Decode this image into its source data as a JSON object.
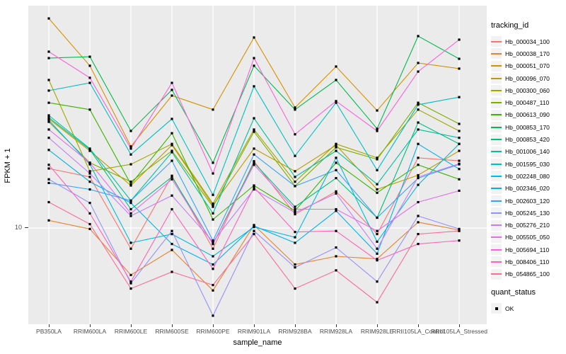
{
  "axes": {
    "ylabel": "FPKM + 1",
    "xlabel": "sample_name",
    "y_tick_label": "10"
  },
  "legend": {
    "tracking_title": "tracking_id",
    "quant_title": "quant_status",
    "quant_ok_label": "OK"
  },
  "colors": {
    "panel_bg": "#EBEBEB",
    "grid": "#FFFFFF",
    "point": "#000000",
    "tick_text": "#4D4D4D",
    "legend_key_bg": "#F2F2F2"
  },
  "chart_data": {
    "type": "line",
    "title": "",
    "xlabel": "sample_name",
    "ylabel": "FPKM + 1",
    "y_scale": "log10",
    "ylim": [
      3.5,
      140
    ],
    "y_breaks": [
      10
    ],
    "grid": "major-only",
    "legend_position": "right",
    "point_shape": "filled-square-black",
    "categories": [
      "PB350LA",
      "RRIM600LA",
      "RRIM600LE",
      "RRIM600SE",
      "RRIM600PE",
      "RRIM901LA",
      "RRIM928BA",
      "RRIM928LA",
      "RRIM928LE",
      "RRII105LA_Control",
      "RRII105LA_Stressed"
    ],
    "quant_status_values": [
      "OK"
    ],
    "series": [
      {
        "name": "Hb_000034_100",
        "color": "#F8766D",
        "values": [
          18.3,
          16.8,
          8.1,
          17.0,
          8.1,
          19.7,
          11.5,
          14.5,
          9.4,
          20.4,
          19.8
        ]
      },
      {
        "name": "Hb_000038_170",
        "color": "#EA8331",
        "values": [
          10.8,
          9.9,
          6.2,
          8.0,
          5.3,
          10.3,
          6.9,
          7.5,
          7.3,
          10.6,
          9.8
        ]
      },
      {
        "name": "Hb_000051_070",
        "color": "#D89000",
        "values": [
          84.1,
          52.0,
          22.9,
          38.4,
          33.3,
          69.3,
          34.0,
          51.6,
          33.0,
          53.5,
          50.5
        ]
      },
      {
        "name": "Hb_000096_070",
        "color": "#C09B00",
        "values": [
          30.3,
          21.9,
          15.4,
          23.2,
          12.6,
          22.4,
          17.8,
          23.2,
          14.8,
          17.1,
          21.9
        ]
      },
      {
        "name": "Hb_000300_060",
        "color": "#A3A500",
        "values": [
          45.0,
          17.8,
          19.1,
          23.5,
          12.8,
          27.2,
          16.0,
          23.5,
          20.4,
          33.3,
          26.8
        ]
      },
      {
        "name": "Hb_000487_110",
        "color": "#7CAE00",
        "values": [
          29.4,
          19.4,
          16.0,
          21.9,
          12.4,
          26.6,
          15.3,
          22.7,
          20.1,
          35.7,
          28.8
        ]
      },
      {
        "name": "Hb_000613_090",
        "color": "#39B600",
        "values": [
          35.7,
          33.3,
          15.6,
          26.2,
          10.9,
          15.4,
          11.9,
          19.4,
          14.3,
          19.0,
          16.4
        ]
      },
      {
        "name": "Hb_000853_170",
        "color": "#00BB4E",
        "values": [
          56.2,
          57.0,
          26.8,
          40.7,
          19.4,
          52.0,
          33.3,
          45.0,
          27.4,
          70.3,
          55.8
        ]
      },
      {
        "name": "Hb_000853_420",
        "color": "#00BF7D",
        "values": [
          30.7,
          22.2,
          12.1,
          16.8,
          8.5,
          19.4,
          12.4,
          16.6,
          11.1,
          29.2,
          23.5
        ]
      },
      {
        "name": "Hb_001006_140",
        "color": "#00C1A3",
        "values": [
          31.4,
          22.4,
          13.2,
          21.6,
          11.6,
          30.5,
          16.8,
          21.9,
          15.6,
          27.2,
          25.0
        ]
      },
      {
        "name": "Hb_001595_030",
        "color": "#00BFC4",
        "values": [
          40.4,
          43.7,
          21.1,
          30.3,
          14.0,
          42.2,
          20.8,
          35.7,
          18.0,
          35.0,
          37.8
        ]
      },
      {
        "name": "Hb_002248_080",
        "color": "#00BAE0",
        "values": [
          29.9,
          19.1,
          8.6,
          9.4,
          7.5,
          10.1,
          9.1,
          20.4,
          8.7,
          15.5,
          23.5
        ]
      },
      {
        "name": "Hb_002346_020",
        "color": "#00B0F6",
        "values": [
          22.1,
          16.0,
          12.9,
          8.5,
          6.9,
          10.2,
          8.6,
          11.9,
          7.7,
          23.5,
          18.2
        ]
      },
      {
        "name": "Hb_002603_120",
        "color": "#35A2FF",
        "values": [
          15.8,
          14.8,
          13.2,
          19.8,
          8.8,
          21.1,
          15.3,
          18.0,
          11.1,
          16.6,
          19.1
        ]
      },
      {
        "name": "Hb_005245_130",
        "color": "#9590FF",
        "values": [
          16.4,
          12.9,
          5.7,
          9.7,
          4.1,
          9.7,
          6.7,
          8.2,
          5.8,
          11.3,
          9.9
        ]
      },
      {
        "name": "Hb_005276_210",
        "color": "#C77CFF",
        "values": [
          25.0,
          17.4,
          11.3,
          13.9,
          8.7,
          14.8,
          11.7,
          14.2,
          8.1,
          16.8,
          19.2
        ]
      },
      {
        "name": "Hb_005505_050",
        "color": "#E76BF3",
        "values": [
          27.2,
          19.4,
          11.6,
          16.4,
          8.5,
          19.0,
          12.1,
          12.1,
          9.7,
          13.0,
          14.6
        ]
      },
      {
        "name": "Hb_005694_110",
        "color": "#FA62DB",
        "values": [
          60.0,
          46.0,
          22.4,
          43.7,
          17.4,
          56.2,
          25.9,
          36.3,
          26.8,
          49.0,
          67.8
        ]
      },
      {
        "name": "Hb_008406_110",
        "color": "#FF62BC",
        "values": [
          19.0,
          11.6,
          5.8,
          12.1,
          6.6,
          15.1,
          9.6,
          9.7,
          7.2,
          8.5,
          8.8
        ]
      },
      {
        "name": "Hb_054865_100",
        "color": "#FF6A98",
        "values": [
          13.0,
          10.4,
          5.4,
          6.4,
          5.6,
          9.4,
          5.4,
          6.5,
          4.7,
          9.4,
          9.7
        ]
      }
    ]
  }
}
